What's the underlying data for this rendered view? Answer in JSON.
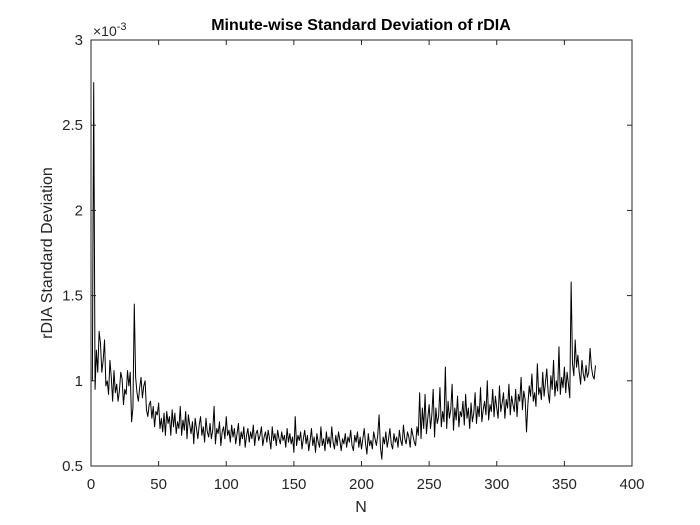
{
  "chart_data": {
    "type": "line",
    "title": "Minute-wise Standard Deviation of rDIA",
    "xlabel": "N",
    "ylabel": "rDIA Standard Deviation",
    "xlim": [
      0,
      400
    ],
    "ylim": [
      0.5,
      3
    ],
    "y_scale_exponent": {
      "base": "×10",
      "power": "-3"
    },
    "x_ticks": [
      0,
      50,
      100,
      150,
      200,
      250,
      300,
      350,
      400
    ],
    "y_ticks": [
      0.5,
      1,
      1.5,
      2,
      2.5,
      3
    ],
    "x_tick_labels": [
      "0",
      "50",
      "100",
      "150",
      "200",
      "250",
      "300",
      "350",
      "400"
    ],
    "y_tick_labels": [
      "0.5",
      "1",
      "1.5",
      "2",
      "2.5",
      "3"
    ],
    "grid": false,
    "box": true,
    "colors": {
      "line": "#000000",
      "axes": "#262626",
      "background": "#ffffff"
    },
    "series": [
      {
        "x_start": 1,
        "x_step": 1,
        "values": [
          1.0,
          2.75,
          0.95,
          1.18,
          1.05,
          1.29,
          1.22,
          1.05,
          1.12,
          1.24,
          0.97,
          1.0,
          0.92,
          1.12,
          1.02,
          0.88,
          1.06,
          0.93,
          0.98,
          0.88,
          0.94,
          1.05,
          1.01,
          0.86,
          0.95,
          0.92,
          1.06,
          0.97,
          1.05,
          0.76,
          0.84,
          1.45,
          1.02,
          0.93,
          0.88,
          0.96,
          1.02,
          0.9,
          0.97,
          1.0,
          0.83,
          0.79,
          0.86,
          0.88,
          0.78,
          0.85,
          0.73,
          0.82,
          0.8,
          0.87,
          0.72,
          0.78,
          0.7,
          0.81,
          0.68,
          0.82,
          0.75,
          0.79,
          0.68,
          0.83,
          0.73,
          0.81,
          0.69,
          0.76,
          0.72,
          0.85,
          0.68,
          0.77,
          0.71,
          0.82,
          0.66,
          0.8,
          0.74,
          0.69,
          0.76,
          0.63,
          0.78,
          0.72,
          0.66,
          0.74,
          0.79,
          0.68,
          0.73,
          0.64,
          0.78,
          0.7,
          0.67,
          0.75,
          0.66,
          0.71,
          0.85,
          0.63,
          0.72,
          0.69,
          0.76,
          0.62,
          0.7,
          0.73,
          0.66,
          0.79,
          0.68,
          0.71,
          0.64,
          0.74,
          0.67,
          0.72,
          0.63,
          0.69,
          0.75,
          0.62,
          0.7,
          0.66,
          0.73,
          0.61,
          0.68,
          0.72,
          0.64,
          0.7,
          0.66,
          0.74,
          0.62,
          0.69,
          0.71,
          0.65,
          0.68,
          0.73,
          0.62,
          0.67,
          0.7,
          0.64,
          0.71,
          0.66,
          0.6,
          0.73,
          0.65,
          0.69,
          0.62,
          0.71,
          0.66,
          0.63,
          0.7,
          0.65,
          0.68,
          0.61,
          0.72,
          0.64,
          0.69,
          0.63,
          0.67,
          0.58,
          0.79,
          0.62,
          0.68,
          0.65,
          0.7,
          0.6,
          0.66,
          0.71,
          0.63,
          0.68,
          0.59,
          0.65,
          0.72,
          0.62,
          0.67,
          0.58,
          0.69,
          0.64,
          0.61,
          0.73,
          0.62,
          0.66,
          0.59,
          0.7,
          0.63,
          0.67,
          0.61,
          0.73,
          0.64,
          0.6,
          0.68,
          0.62,
          0.7,
          0.65,
          0.59,
          0.66,
          0.63,
          0.69,
          0.61,
          0.67,
          0.64,
          0.71,
          0.62,
          0.59,
          0.68,
          0.64,
          0.7,
          0.61,
          0.67,
          0.6,
          0.66,
          0.72,
          0.63,
          0.57,
          0.69,
          0.62,
          0.65,
          0.6,
          0.7,
          0.66,
          0.62,
          0.68,
          0.8,
          0.61,
          0.54,
          0.67,
          0.63,
          0.7,
          0.61,
          0.66,
          0.72,
          0.63,
          0.6,
          0.69,
          0.64,
          0.67,
          0.61,
          0.71,
          0.65,
          0.62,
          0.74,
          0.66,
          0.63,
          0.7,
          0.67,
          0.61,
          0.72,
          0.68,
          0.64,
          0.62,
          0.73,
          0.68,
          0.93,
          0.66,
          0.84,
          0.72,
          0.92,
          0.69,
          0.78,
          0.86,
          0.72,
          0.8,
          0.95,
          0.67,
          0.84,
          0.75,
          0.79,
          0.96,
          0.73,
          0.82,
          0.76,
          1.08,
          0.72,
          0.88,
          0.78,
          0.83,
          0.98,
          0.71,
          0.84,
          0.77,
          0.91,
          0.73,
          0.82,
          0.79,
          0.88,
          0.74,
          0.92,
          0.78,
          0.84,
          0.72,
          0.87,
          0.76,
          0.81,
          0.93,
          0.75,
          0.85,
          0.79,
          0.96,
          0.76,
          0.83,
          0.88,
          0.8,
          1.0,
          0.77,
          0.86,
          0.82,
          0.95,
          0.79,
          0.91,
          0.84,
          0.78,
          0.97,
          0.82,
          0.87,
          0.93,
          0.78,
          0.89,
          0.84,
          0.98,
          0.8,
          0.91,
          0.86,
          0.82,
          0.95,
          0.79,
          0.92,
          0.88,
          1.02,
          0.83,
          0.94,
          0.89,
          0.7,
          0.86,
          0.97,
          0.91,
          1.04,
          0.88,
          0.93,
          0.85,
          1.1,
          0.92,
          0.96,
          0.89,
          1.05,
          0.91,
          0.99,
          1.07,
          0.93,
          0.87,
          1.03,
          0.95,
          1.12,
          0.91,
          1.0,
          0.94,
          1.2,
          0.92,
          1.02,
          0.96,
          1.08,
          0.93,
          1.05,
          0.98,
          0.9,
          1.58,
          1.1,
          1.03,
          1.24,
          1.08,
          1.15,
          1.05,
          0.98,
          1.12,
          1.04,
          1.0,
          1.09,
          1.02,
          1.05,
          1.19,
          1.08,
          1.03,
          1.01,
          1.09
        ]
      }
    ]
  }
}
